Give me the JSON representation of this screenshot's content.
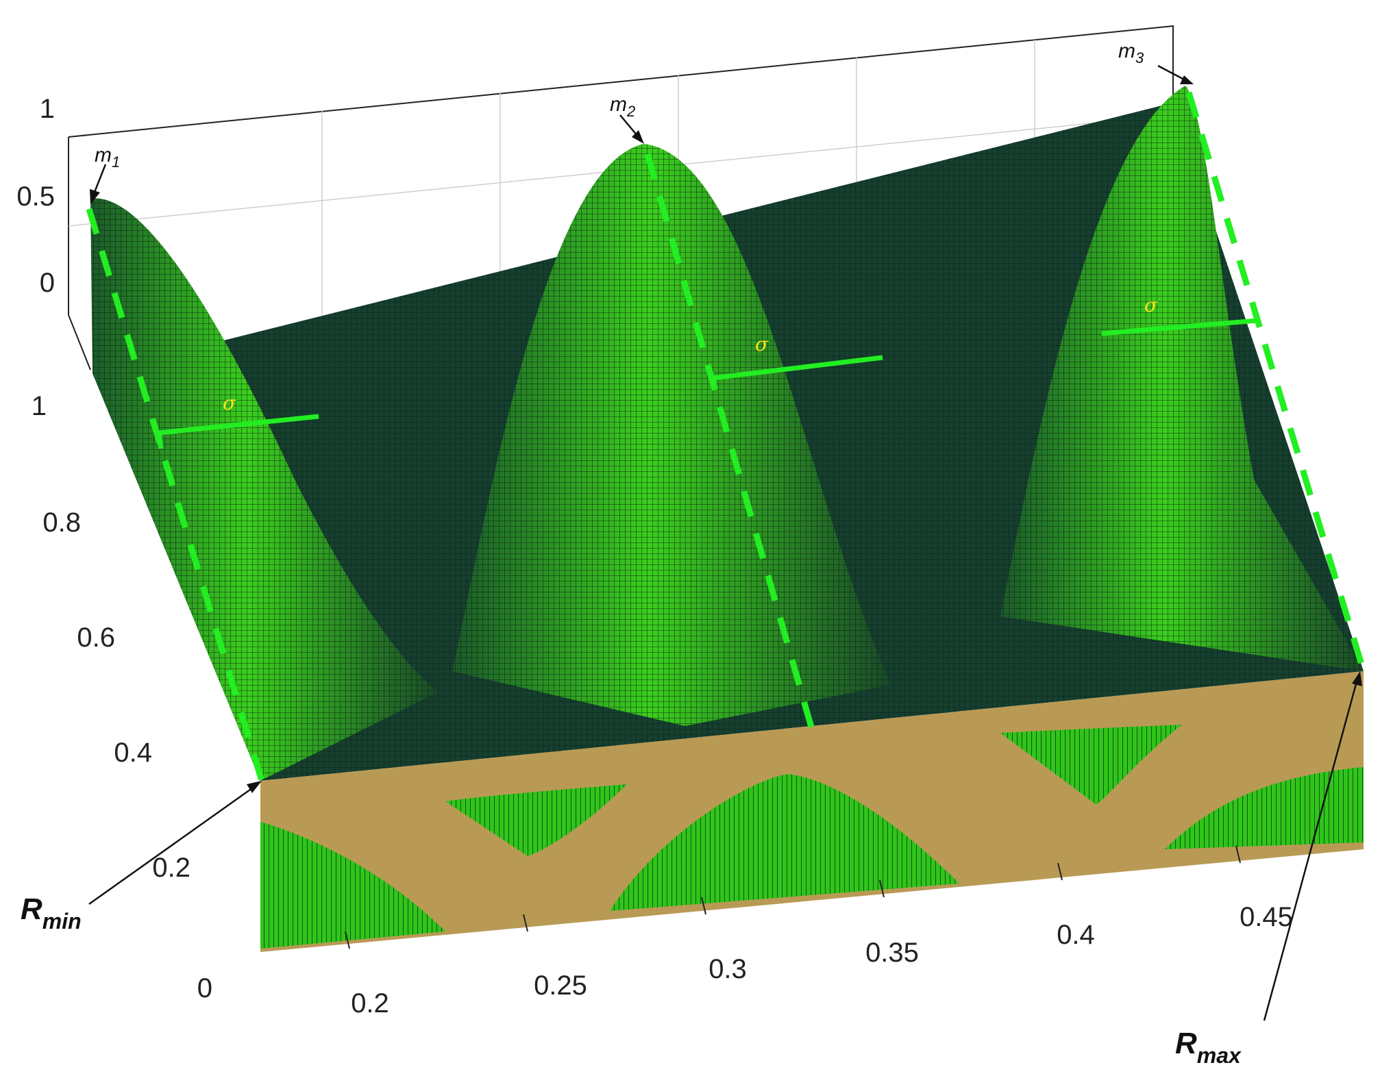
{
  "chart_data": {
    "type": "surface",
    "title": "",
    "xlabel": "",
    "ylabel": "",
    "zlabel": "",
    "x_ticks": [
      "0.2",
      "0.25",
      "0.3",
      "0.35",
      "0.4",
      "0.45"
    ],
    "y_ticks": [
      "0",
      "0.2",
      "0.4",
      "0.6",
      "0.8",
      "1"
    ],
    "z_ticks": [
      "0",
      "0.5",
      "1"
    ],
    "xlim": [
      0.175,
      0.48
    ],
    "ylim": [
      0,
      1
    ],
    "zlim": [
      0,
      1
    ],
    "peaks": [
      {
        "label": "m",
        "sub": "1",
        "center": 0.175,
        "height": 0.45
      },
      {
        "label": "m",
        "sub": "2",
        "center": 0.325,
        "height": 0.75
      },
      {
        "label": "m",
        "sub": "3",
        "center": 0.48,
        "height": 1.0
      }
    ],
    "sigma_label": "σ",
    "r_min": {
      "label": "R",
      "sub": "min"
    },
    "r_max": {
      "label": "R",
      "sub": "max"
    },
    "colors": {
      "surface_dark": "#163f2f",
      "surface_light": "#39d21a",
      "front_face": "#b99a55",
      "guide": "#22ee22",
      "sigma_text": "#ffe21a"
    }
  }
}
